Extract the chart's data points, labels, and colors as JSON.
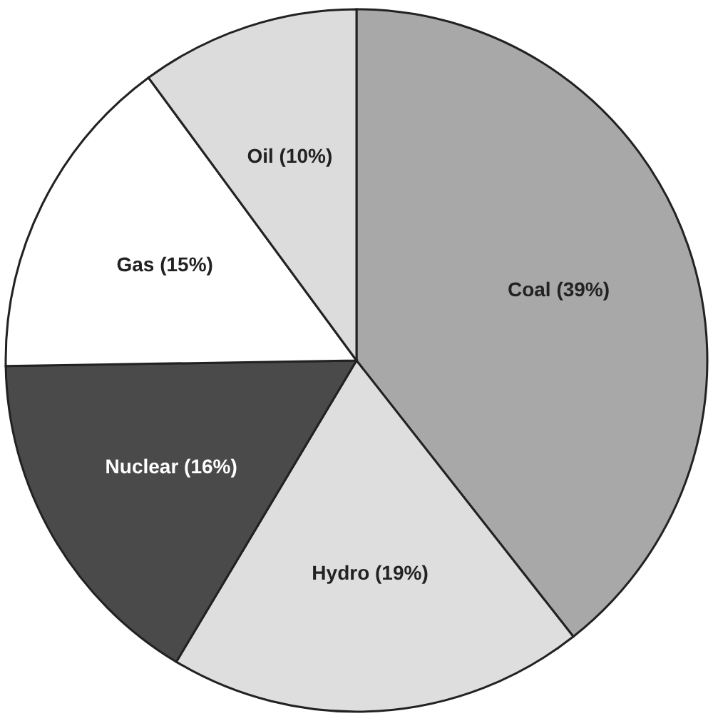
{
  "chart_data": {
    "type": "pie",
    "categories": [
      "Coal (39%)",
      "Hydro (19%)",
      "Nuclear (16%)",
      "Gas (15%)",
      "Oil (10%)"
    ],
    "values": [
      39,
      19,
      16,
      15,
      10
    ],
    "colors": [
      "#a8a8a8",
      "#dedede",
      "#4a4a4a",
      "#ffffff",
      "#dcdcdc"
    ]
  }
}
